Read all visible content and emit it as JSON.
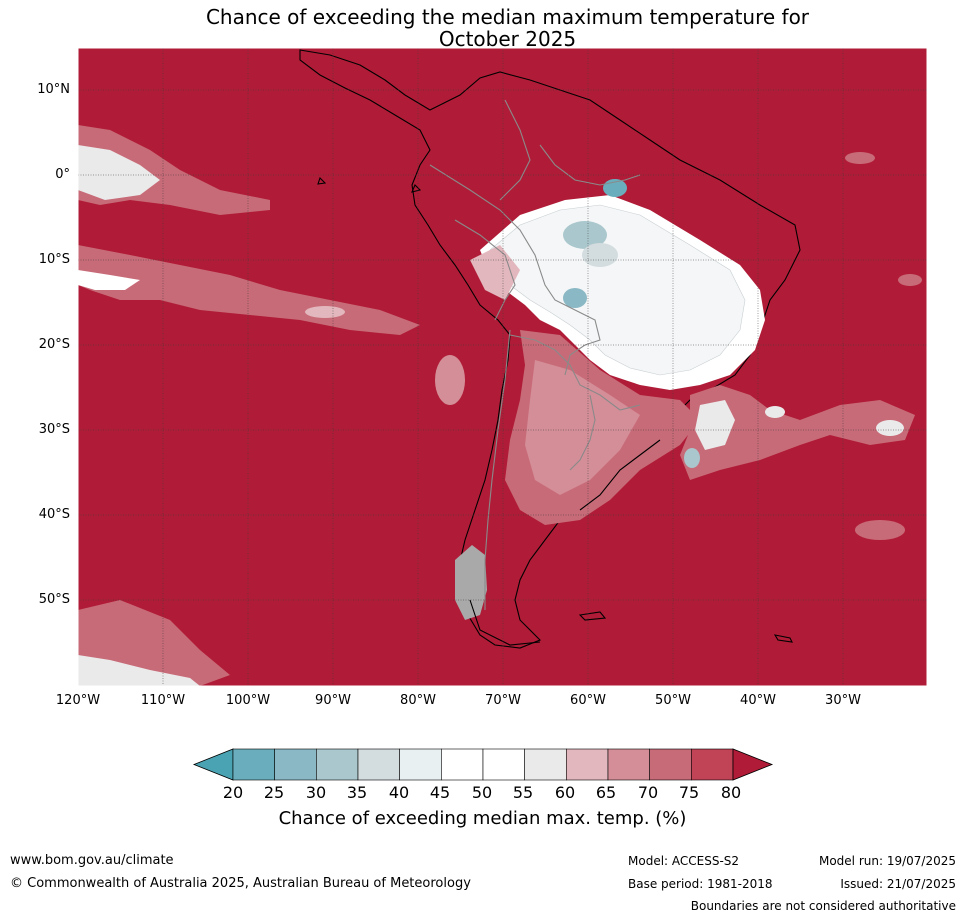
{
  "title": {
    "line1": "Chance of exceeding the median maximum temperature for",
    "line2": "October 2025"
  },
  "map": {
    "latitude_labels": [
      "10°N",
      "0°",
      "10°S",
      "20°S",
      "30°S",
      "40°S",
      "50°S"
    ],
    "longitude_labels": [
      "120°W",
      "110°W",
      "100°W",
      "90°W",
      "80°W",
      "70°W",
      "60°W",
      "50°W",
      "40°W",
      "30°W"
    ],
    "background_category": "above 80%",
    "colors": {
      "ocean_fill": "#b01c37",
      "coast": "#000000",
      "borders": "#8a8a8a",
      "grid": "#3d3d3d"
    }
  },
  "colorbar": {
    "ticks": [
      "20",
      "25",
      "30",
      "35",
      "40",
      "45",
      "50",
      "55",
      "60",
      "65",
      "70",
      "75",
      "80"
    ],
    "colors": [
      "#4aa3b3",
      "#6aaebd",
      "#8ab8c5",
      "#a9c7cc",
      "#d3dcde",
      "#e9f0f2",
      "#ffffff",
      "#ffffff",
      "#eaeaea",
      "#e2b7bd",
      "#d48e98",
      "#c86b78",
      "#c04356",
      "#b01c37"
    ],
    "label": "Chance of exceeding median max. temp. (%)"
  },
  "footer": {
    "website": "www.bom.gov.au/climate",
    "copyright": "© Commonwealth of Australia 2025, Australian Bureau of Meteorology",
    "model": "Model: ACCESS-S2",
    "base_period": "Base period: 1981-2018",
    "model_run": "Model run: 19/07/2025",
    "issued": "Issued: 21/07/2025",
    "disclaimer": "Boundaries are not considered authoritative"
  }
}
